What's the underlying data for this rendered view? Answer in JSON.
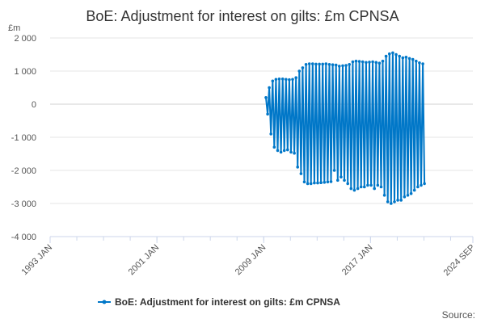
{
  "chart_data": {
    "type": "line",
    "title": "BoE: Adjustment for interest on gilts: £m CPNSA",
    "ylabel": "£m",
    "xlabel": "",
    "x_range": [
      "1993 JAN",
      "2024 SEP"
    ],
    "ylim": [
      -4000,
      2000
    ],
    "y_ticks": [
      2000,
      1000,
      0,
      -1000,
      -2000,
      -3000,
      -4000
    ],
    "y_tick_labels": [
      "2 000",
      "1 000",
      "0",
      "-1 000",
      "-2 000",
      "-3 000",
      "-4 000"
    ],
    "x_ticks": [
      "1993 JAN",
      "2001 JAN",
      "2009 JAN",
      "2017 JAN",
      "2024 SEP"
    ],
    "grid": true,
    "legend_position": "bottom-center",
    "series": [
      {
        "name": "BoE: Adjustment for interest on gilts: £m CPNSA",
        "color": "#0077c8",
        "start": "2009-03",
        "pattern": "alternating quarterly high/low",
        "high_values": [
          200,
          500,
          700,
          750,
          760,
          760,
          750,
          740,
          750,
          800,
          1000,
          1100,
          1200,
          1220,
          1220,
          1210,
          1210,
          1210,
          1220,
          1200,
          1190,
          1180,
          1150,
          1160,
          1170,
          1200,
          1280,
          1300,
          1290,
          1280,
          1260,
          1270,
          1280,
          1260,
          1240,
          1300,
          1450,
          1520,
          1550,
          1500,
          1450,
          1400,
          1420,
          1380,
          1350,
          1300,
          1250,
          1220
        ],
        "low_values": [
          -300,
          -900,
          -1300,
          -1400,
          -1450,
          -1400,
          -1380,
          -1450,
          -1480,
          -1900,
          -2100,
          -2350,
          -2400,
          -2400,
          -2380,
          -2380,
          -2370,
          -2360,
          -2350,
          -2340,
          -2000,
          -2300,
          -2200,
          -2300,
          -2400,
          -2550,
          -2600,
          -2550,
          -2500,
          -2500,
          -2450,
          -2450,
          -2550,
          -2450,
          -2500,
          -2750,
          -2950,
          -3000,
          -2950,
          -2900,
          -2900,
          -2800,
          -2750,
          -2700,
          -2600,
          -2500,
          -2450,
          -2400
        ]
      }
    ]
  },
  "legend": {
    "label": "BoE: Adjustment for interest on gilts: £m CPNSA"
  },
  "source_label": "Source:"
}
